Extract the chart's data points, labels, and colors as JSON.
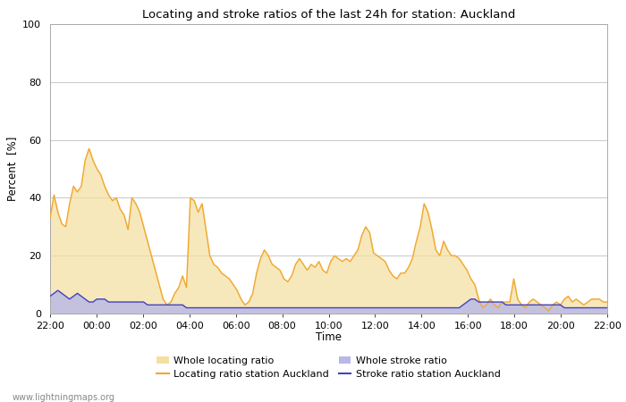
{
  "title": "Locating and stroke ratios of the last 24h for station: Auckland",
  "ylabel": "Percent  [%]",
  "xlabel": "Time",
  "ylim": [
    0,
    100
  ],
  "yticks": [
    0,
    20,
    40,
    60,
    80,
    100
  ],
  "xtick_labels": [
    "22:00",
    "00:00",
    "02:00",
    "04:00",
    "06:00",
    "08:00",
    "10:00",
    "12:00",
    "14:00",
    "16:00",
    "18:00",
    "20:00",
    "22:00"
  ],
  "watermark": "www.lightningmaps.org",
  "locating_ratio_color": "#f0a830",
  "locating_ratio_fill_color": "#f5dfa0",
  "stroke_ratio_color": "#4444bb",
  "stroke_ratio_fill_color": "#b8b8e8",
  "locating_ratio": [
    33,
    41,
    35,
    31,
    30,
    38,
    44,
    42,
    44,
    53,
    57,
    53,
    50,
    48,
    44,
    41,
    39,
    40,
    36,
    34,
    29,
    40,
    38,
    35,
    30,
    25,
    20,
    15,
    10,
    5,
    3,
    4,
    7,
    9,
    13,
    9,
    40,
    39,
    35,
    38,
    29,
    20,
    17,
    16,
    14,
    13,
    12,
    10,
    8,
    5,
    3,
    4,
    7,
    14,
    19,
    22,
    20,
    17,
    16,
    15,
    12,
    11,
    13,
    17,
    19,
    17,
    15,
    17,
    16,
    18,
    15,
    14,
    18,
    20,
    19,
    18,
    19,
    18,
    20,
    22,
    27,
    30,
    28,
    21,
    20,
    19,
    18,
    15,
    13,
    12,
    14,
    14,
    16,
    19,
    25,
    30,
    38,
    35,
    29,
    22,
    20,
    25,
    22,
    20,
    20,
    19,
    17,
    15,
    12,
    10,
    5,
    2,
    3,
    5,
    3,
    2,
    4,
    4,
    4,
    12,
    5,
    3,
    2,
    4,
    5,
    4,
    3,
    2,
    1,
    3,
    4,
    3,
    5,
    6,
    4,
    5,
    4,
    3,
    4,
    5,
    5,
    5,
    4,
    4
  ],
  "stroke_ratio": [
    6,
    7,
    8,
    7,
    6,
    5,
    6,
    7,
    6,
    5,
    4,
    4,
    5,
    5,
    5,
    4,
    4,
    4,
    4,
    4,
    4,
    4,
    4,
    4,
    4,
    3,
    3,
    3,
    3,
    3,
    3,
    3,
    3,
    3,
    3,
    2,
    2,
    2,
    2,
    2,
    2,
    2,
    2,
    2,
    2,
    2,
    2,
    2,
    2,
    2,
    2,
    2,
    2,
    2,
    2,
    2,
    2,
    2,
    2,
    2,
    2,
    2,
    2,
    2,
    2,
    2,
    2,
    2,
    2,
    2,
    2,
    2,
    2,
    2,
    2,
    2,
    2,
    2,
    2,
    2,
    2,
    2,
    2,
    2,
    2,
    2,
    2,
    2,
    2,
    2,
    2,
    2,
    2,
    2,
    2,
    2,
    2,
    2,
    2,
    2,
    2,
    2,
    2,
    2,
    2,
    2,
    3,
    4,
    5,
    5,
    4,
    4,
    4,
    4,
    4,
    4,
    4,
    3,
    3,
    3,
    3,
    3,
    3,
    3,
    3,
    3,
    3,
    3,
    3,
    3,
    3,
    3,
    2,
    2,
    2,
    2,
    2,
    2,
    2,
    2,
    2,
    2,
    2,
    2
  ],
  "background_color": "#ffffff",
  "plot_bg_color": "#ffffff"
}
